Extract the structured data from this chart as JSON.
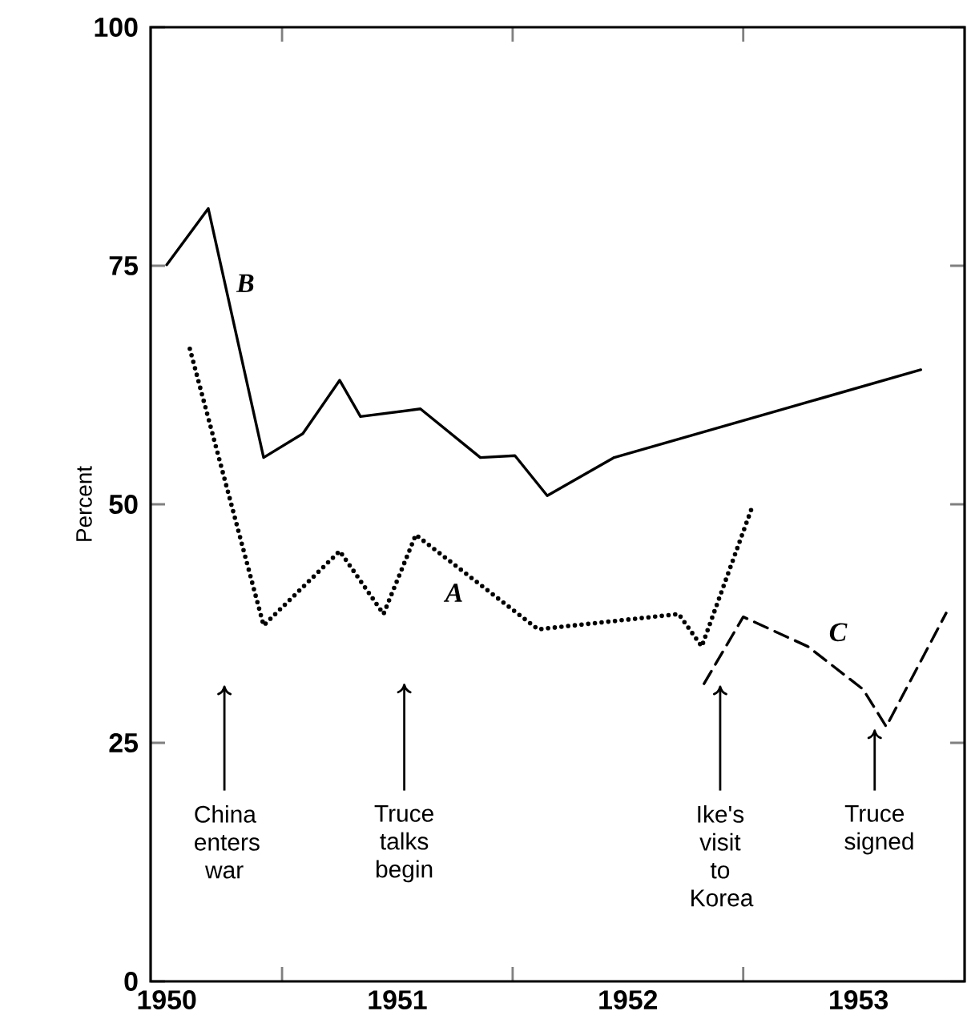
{
  "chart_data": {
    "type": "line",
    "ylabel": "Percent",
    "xlim": [
      1950.43,
      1953.96
    ],
    "ylim": [
      0,
      100
    ],
    "yticks": [
      0,
      25,
      50,
      75,
      100
    ],
    "xticks": [
      {
        "value": 1950.5,
        "label": "1950"
      },
      {
        "value": 1951,
        "label": null
      },
      {
        "value": 1951.5,
        "label": "1951"
      },
      {
        "value": 1952,
        "label": null
      },
      {
        "value": 1952.5,
        "label": "1952"
      },
      {
        "value": 1953,
        "label": null
      },
      {
        "value": 1953.5,
        "label": "1953"
      }
    ],
    "grid": false,
    "legend": false,
    "marker": "none",
    "series": [
      {
        "name": "A",
        "color": "#000000",
        "line_style": "dotted",
        "x": [
          1950.6,
          1950.92,
          1951.25,
          1951.44,
          1951.58,
          1952.11,
          1952.72,
          1952.82,
          1953.04
        ],
        "values": [
          66.3,
          37.3,
          45.1,
          38.5,
          46.8,
          36.9,
          38.5,
          35.1,
          49.8
        ]
      },
      {
        "name": "B",
        "color": "#000000",
        "line_style": "solid",
        "x": [
          1950.5,
          1950.68,
          1950.92,
          1951.09,
          1951.25,
          1951.34,
          1951.6,
          1951.86,
          1952.01,
          1952.15,
          1952.44,
          1953.77
        ],
        "values": [
          75.1,
          81.0,
          54.9,
          57.4,
          63.0,
          59.2,
          60.0,
          54.9,
          55.1,
          50.9,
          54.9,
          64.1
        ]
      },
      {
        "name": "C",
        "color": "#000000",
        "line_style": "dashed",
        "x": [
          1952.83,
          1953.0,
          1953.28,
          1953.52,
          1953.62,
          1953.88
        ],
        "values": [
          31.2,
          38.2,
          35.1,
          30.6,
          26.7,
          38.6
        ]
      }
    ],
    "annotations": [
      "China enters war",
      "Truce talks begin",
      "Ike's visit to Korea",
      "Truce signed"
    ]
  }
}
